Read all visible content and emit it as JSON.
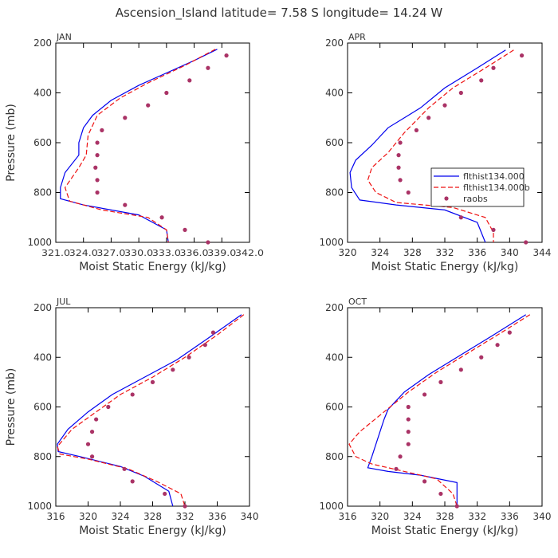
{
  "figure": {
    "title": "Ascension_Island  latitude= 7.58 S longitude= 14.24 W"
  },
  "colors": {
    "model_a": "#0000ee",
    "model_b": "#ee1111",
    "raobs": "#aa3366",
    "axis": "#000000",
    "text": "#333333"
  },
  "chart_data": [
    {
      "type": "line",
      "panel": "JAN",
      "xlabel": "Moist Static Energy (kJ/kg)",
      "ylabel": "Pressure (mb)",
      "xlim": [
        321.0,
        342.0
      ],
      "ylim": [
        1000,
        200
      ],
      "xticks": [
        321.0,
        324.0,
        327.0,
        330.0,
        333.0,
        336.0,
        339.0,
        342.0
      ],
      "xtick_labels": [
        "321.0",
        "324.0",
        "327.0",
        "330.0",
        "333.0",
        "336.0",
        "339.0",
        "342.0"
      ],
      "yticks": [
        200,
        400,
        600,
        800,
        1000
      ],
      "ytick_labels": [
        "200",
        "400",
        "600",
        "800",
        "1000"
      ],
      "series": [
        {
          "name": "flthist134.000",
          "style": "solid",
          "points": [
            [
              338.5,
              225
            ],
            [
              336,
              270
            ],
            [
              333,
              320
            ],
            [
              330,
              370
            ],
            [
              327,
              430
            ],
            [
              325,
              490
            ],
            [
              324,
              540
            ],
            [
              323.5,
              600
            ],
            [
              323.5,
              650
            ],
            [
              322,
              720
            ],
            [
              321.5,
              780
            ],
            [
              321.5,
              825
            ],
            [
              324,
              850
            ],
            [
              330,
              890
            ],
            [
              333,
              950
            ],
            [
              333.2,
              1000
            ]
          ]
        },
        {
          "name": "flthist134.000b",
          "style": "dashed",
          "points": [
            [
              338.3,
              225
            ],
            [
              335,
              290
            ],
            [
              331,
              360
            ],
            [
              328,
              420
            ],
            [
              325.5,
              490
            ],
            [
              324.5,
              570
            ],
            [
              324.3,
              650
            ],
            [
              323.5,
              700
            ],
            [
              322,
              780
            ],
            [
              322.5,
              835
            ],
            [
              326,
              870
            ],
            [
              331,
              900
            ],
            [
              333,
              950
            ],
            [
              333.2,
              1000
            ]
          ]
        },
        {
          "name": "raobs",
          "style": "dots",
          "points": [
            [
              339.5,
              250
            ],
            [
              337.5,
              300
            ],
            [
              335.5,
              350
            ],
            [
              333,
              400
            ],
            [
              331,
              450
            ],
            [
              328.5,
              500
            ],
            [
              326,
              550
            ],
            [
              325.5,
              600
            ],
            [
              325.5,
              650
            ],
            [
              325.3,
              700
            ],
            [
              325.5,
              750
            ],
            [
              325.5,
              800
            ],
            [
              328.5,
              850
            ],
            [
              332.5,
              900
            ],
            [
              335,
              950
            ],
            [
              337.5,
              1000
            ]
          ]
        }
      ]
    },
    {
      "type": "line",
      "panel": "APR",
      "xlabel": "Moist Static Energy (kJ/kg)",
      "ylabel": "Pressure (mb)",
      "xlim": [
        320,
        344
      ],
      "ylim": [
        1000,
        200
      ],
      "xticks": [
        320,
        324,
        328,
        332,
        336,
        340,
        344
      ],
      "xtick_labels": [
        "320",
        "324",
        "328",
        "332",
        "336",
        "340",
        "344"
      ],
      "yticks": [
        200,
        400,
        600,
        800,
        1000
      ],
      "ytick_labels": [
        "200",
        "400",
        "600",
        "800",
        "1000"
      ],
      "legend": [
        "flthist134.000",
        "flthist134.000b",
        "raobs"
      ],
      "series": [
        {
          "name": "flthist134.000",
          "style": "solid",
          "points": [
            [
              339.5,
              228
            ],
            [
              336,
              300
            ],
            [
              332,
              380
            ],
            [
              329,
              460
            ],
            [
              325,
              540
            ],
            [
              323,
              610
            ],
            [
              321,
              670
            ],
            [
              320.3,
              720
            ],
            [
              320.5,
              780
            ],
            [
              321.5,
              830
            ],
            [
              326,
              850
            ],
            [
              332,
              870
            ],
            [
              336,
              920
            ],
            [
              337,
              1000
            ]
          ]
        },
        {
          "name": "flthist134.000b",
          "style": "dashed",
          "points": [
            [
              340.5,
              228
            ],
            [
              337,
              300
            ],
            [
              333,
              380
            ],
            [
              330,
              460
            ],
            [
              327,
              560
            ],
            [
              325,
              640
            ],
            [
              323,
              700
            ],
            [
              322.5,
              750
            ],
            [
              323.5,
              800
            ],
            [
              326,
              840
            ],
            [
              333,
              860
            ],
            [
              337,
              900
            ],
            [
              338,
              960
            ],
            [
              338,
              1000
            ]
          ]
        },
        {
          "name": "raobs",
          "style": "dots",
          "points": [
            [
              341.5,
              250
            ],
            [
              338,
              300
            ],
            [
              336.5,
              350
            ],
            [
              334,
              400
            ],
            [
              332,
              450
            ],
            [
              330,
              500
            ],
            [
              328.5,
              550
            ],
            [
              326.5,
              600
            ],
            [
              326.3,
              650
            ],
            [
              326.3,
              700
            ],
            [
              326.5,
              750
            ],
            [
              327.5,
              800
            ],
            [
              332,
              850
            ],
            [
              334,
              900
            ],
            [
              338,
              950
            ],
            [
              342,
              1000
            ]
          ]
        }
      ]
    },
    {
      "type": "line",
      "panel": "JUL",
      "xlabel": "Moist Static Energy (kJ/kg)",
      "ylabel": "Pressure (mb)",
      "xlim": [
        316,
        340
      ],
      "ylim": [
        1000,
        200
      ],
      "xticks": [
        316,
        320,
        324,
        328,
        332,
        336,
        340
      ],
      "xtick_labels": [
        "316",
        "320",
        "324",
        "328",
        "332",
        "336",
        "340"
      ],
      "yticks": [
        200,
        400,
        600,
        800,
        1000
      ],
      "ytick_labels": [
        "200",
        "400",
        "600",
        "800",
        "1000"
      ],
      "series": [
        {
          "name": "flthist134.000",
          "style": "solid",
          "points": [
            [
              339,
              228
            ],
            [
              335,
              320
            ],
            [
              331,
              410
            ],
            [
              327,
              480
            ],
            [
              323,
              550
            ],
            [
              320,
              620
            ],
            [
              317.5,
              690
            ],
            [
              316.2,
              750
            ],
            [
              316.3,
              780
            ],
            [
              319,
              800
            ],
            [
              324,
              840
            ],
            [
              327,
              880
            ],
            [
              330,
              940
            ],
            [
              330.5,
              1000
            ]
          ]
        },
        {
          "name": "flthist134.000b",
          "style": "dashed",
          "points": [
            [
              339.3,
              228
            ],
            [
              336,
              310
            ],
            [
              332,
              400
            ],
            [
              328,
              480
            ],
            [
              324,
              550
            ],
            [
              321,
              620
            ],
            [
              318,
              690
            ],
            [
              316.2,
              760
            ],
            [
              316.5,
              790
            ],
            [
              320,
              810
            ],
            [
              325,
              850
            ],
            [
              328.5,
              900
            ],
            [
              331.5,
              950
            ],
            [
              332,
              1000
            ]
          ]
        },
        {
          "name": "raobs",
          "style": "dots",
          "points": [
            [
              335.5,
              300
            ],
            [
              334.5,
              350
            ],
            [
              332.5,
              400
            ],
            [
              330.5,
              450
            ],
            [
              328,
              500
            ],
            [
              325.5,
              550
            ],
            [
              322.5,
              600
            ],
            [
              321,
              650
            ],
            [
              320.5,
              700
            ],
            [
              320,
              750
            ],
            [
              320.5,
              800
            ],
            [
              324.5,
              850
            ],
            [
              325.5,
              900
            ],
            [
              329.5,
              950
            ],
            [
              332,
              1000
            ]
          ]
        }
      ]
    },
    {
      "type": "line",
      "panel": "OCT",
      "xlabel": "Moist Static Energy (kJ/kg)",
      "ylabel": "Pressure (mb)",
      "xlim": [
        316,
        340
      ],
      "ylim": [
        1000,
        200
      ],
      "xticks": [
        316,
        320,
        324,
        328,
        332,
        336,
        340
      ],
      "xtick_labels": [
        "316",
        "320",
        "324",
        "328",
        "332",
        "336",
        "340"
      ],
      "yticks": [
        200,
        400,
        600,
        800,
        1000
      ],
      "ytick_labels": [
        "200",
        "400",
        "600",
        "800",
        "1000"
      ],
      "series": [
        {
          "name": "flthist134.000",
          "style": "solid",
          "points": [
            [
              338,
              228
            ],
            [
              334,
              310
            ],
            [
              330,
              390
            ],
            [
              326,
              470
            ],
            [
              323,
              540
            ],
            [
              321,
              610
            ],
            [
              320.5,
              650
            ],
            [
              320,
              700
            ],
            [
              319.5,
              750
            ],
            [
              319,
              800
            ],
            [
              318.5,
              845
            ],
            [
              321,
              860
            ],
            [
              325,
              875
            ],
            [
              329.5,
              905
            ],
            [
              329.5,
              1000
            ]
          ]
        },
        {
          "name": "flthist134.000b",
          "style": "dashed",
          "points": [
            [
              338.5,
              228
            ],
            [
              335,
              300
            ],
            [
              331,
              380
            ],
            [
              327,
              460
            ],
            [
              323.5,
              540
            ],
            [
              320.5,
              620
            ],
            [
              317.5,
              700
            ],
            [
              316.2,
              750
            ],
            [
              317,
              800
            ],
            [
              319,
              830
            ],
            [
              323,
              860
            ],
            [
              327,
              890
            ],
            [
              329,
              950
            ],
            [
              329.5,
              1000
            ]
          ]
        },
        {
          "name": "raobs",
          "style": "dots",
          "points": [
            [
              336,
              300
            ],
            [
              334.5,
              350
            ],
            [
              332.5,
              400
            ],
            [
              330,
              450
            ],
            [
              327.5,
              500
            ],
            [
              325.5,
              550
            ],
            [
              323.5,
              600
            ],
            [
              323.5,
              650
            ],
            [
              323.5,
              700
            ],
            [
              323.5,
              750
            ],
            [
              322.5,
              800
            ],
            [
              322,
              850
            ],
            [
              325.5,
              900
            ],
            [
              327.5,
              950
            ],
            [
              329.5,
              1000
            ]
          ]
        }
      ]
    }
  ]
}
